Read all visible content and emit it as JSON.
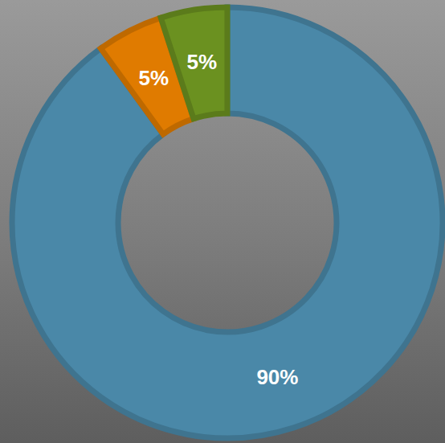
{
  "chart_data": {
    "type": "pie",
    "values": [
      90,
      5,
      5
    ],
    "value_labels": [
      "90%",
      "5%",
      "5%"
    ],
    "colors": [
      "#4a88a8",
      "#e07b00",
      "#6b9120"
    ],
    "data_labels": true
  }
}
